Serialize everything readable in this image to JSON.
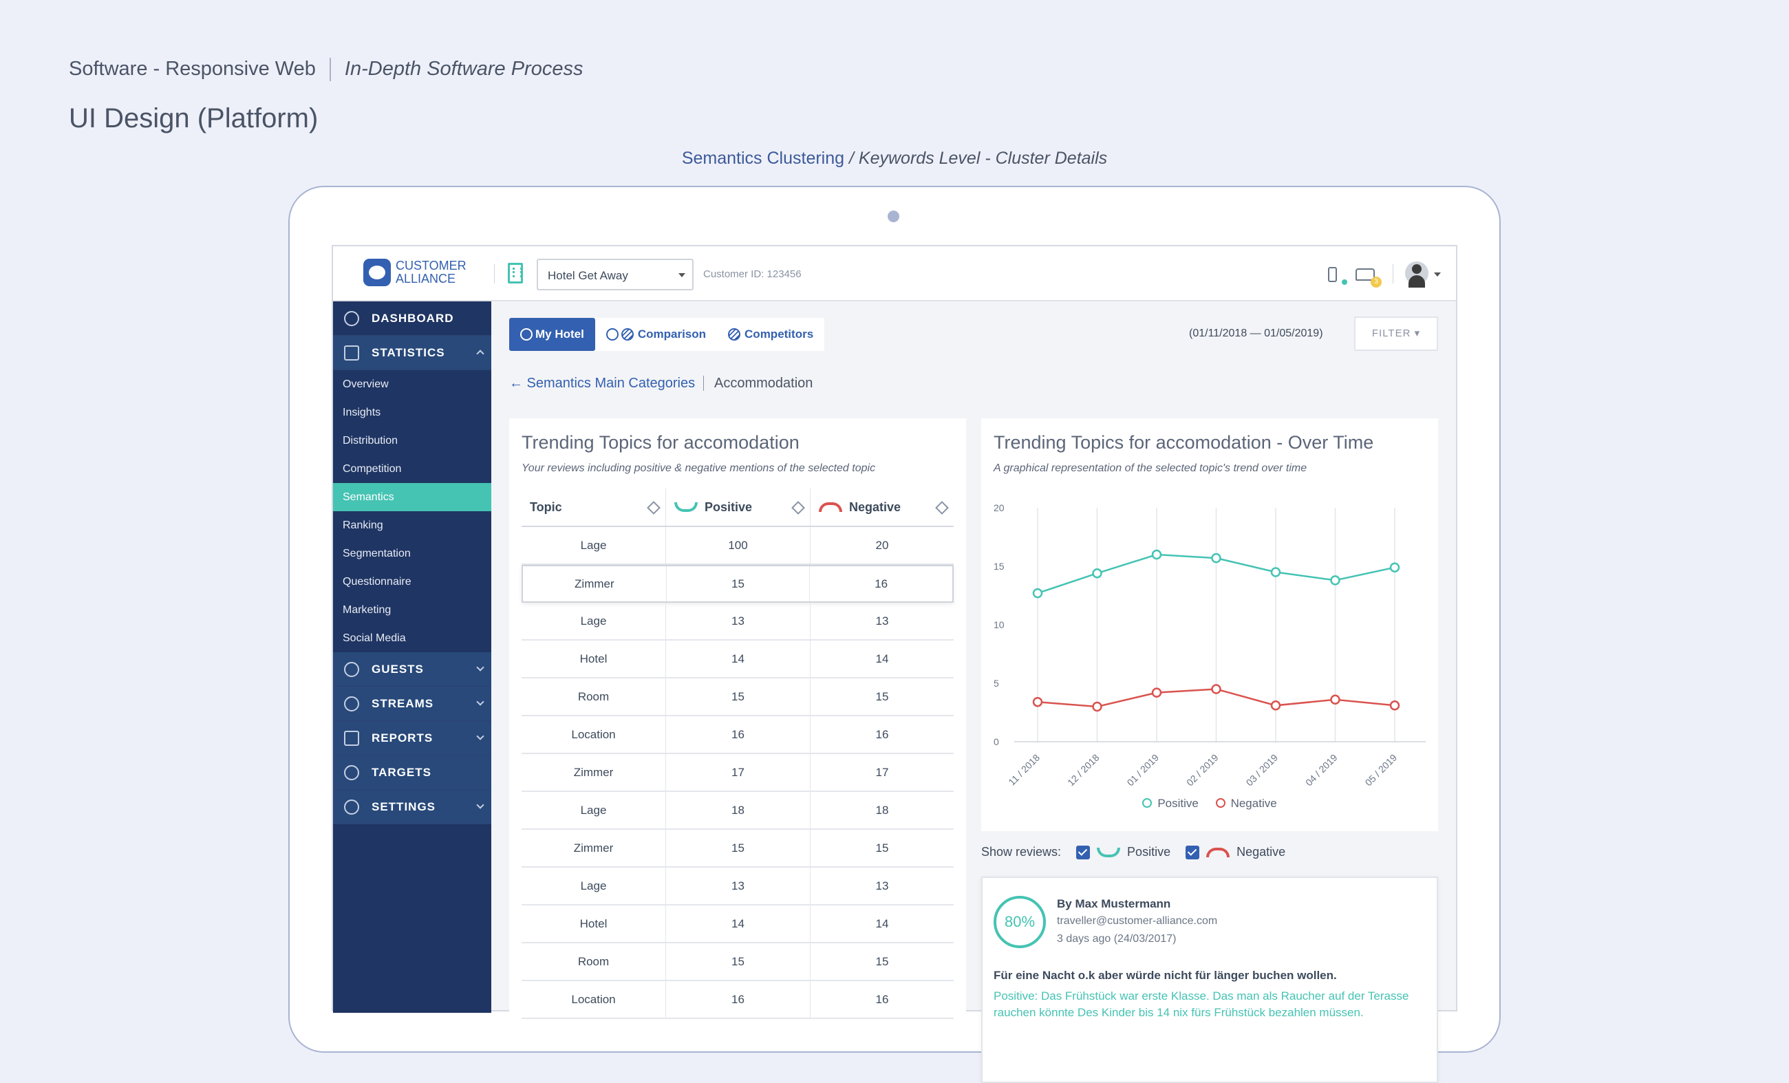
{
  "page": {
    "section": "Software - Responsive Web",
    "subsection": "In-Depth Software Process",
    "heading": "UI Design (Platform)",
    "crumb_main": "Semantics Clustering",
    "crumb_sep": "/",
    "crumb_detail": "Keywords Level - Cluster Details"
  },
  "brand": {
    "line1": "CUSTOMER",
    "line2": "ALLIANCE",
    "color": "#3360b0"
  },
  "topbar": {
    "hotel": "Hotel Get Away",
    "customer_id": "Customer ID: 123456",
    "badge": "3"
  },
  "nav": {
    "dashboard": "DASHBOARD",
    "statistics": "STATISTICS",
    "items": [
      "Overview",
      "Insights",
      "Distribution",
      "Competition",
      "Semantics",
      "Ranking",
      "Segmentation",
      "Questionnaire",
      "Marketing",
      "Social Media"
    ],
    "guests": "GUESTS",
    "streams": "STREAMS",
    "reports": "REPORTS",
    "targets": "TARGETS",
    "settings": "SETTINGS"
  },
  "tabs": {
    "my_hotel": "My Hotel",
    "comparison": "Comparison",
    "competitors": "Competitors"
  },
  "date_range": "(01/11/2018 — 01/05/2019)",
  "filter": "FILTER ▾",
  "breadcrumb": {
    "back": "← Semantics Main Categories",
    "current": "Accommodation"
  },
  "topics_panel": {
    "title": "Trending Topics for accomodation",
    "subtitle": "Your reviews including positive & negative mentions of the selected topic",
    "columns": [
      "Topic",
      "Positive",
      "Negative"
    ],
    "rows": [
      [
        "Lage",
        "100",
        "20"
      ],
      [
        "Zimmer",
        "15",
        "16"
      ],
      [
        "Lage",
        "13",
        "13"
      ],
      [
        "Hotel",
        "14",
        "14"
      ],
      [
        "Room",
        "15",
        "15"
      ],
      [
        "Location",
        "16",
        "16"
      ],
      [
        "Zimmer",
        "17",
        "17"
      ],
      [
        "Lage",
        "18",
        "18"
      ],
      [
        "Zimmer",
        "15",
        "15"
      ],
      [
        "Lage",
        "13",
        "13"
      ],
      [
        "Hotel",
        "14",
        "14"
      ],
      [
        "Room",
        "15",
        "15"
      ],
      [
        "Location",
        "16",
        "16"
      ]
    ]
  },
  "trend_panel": {
    "title": "Trending Topics for accomodation - Over Time",
    "subtitle": "A graphical representation of the selected topic's trend over time"
  },
  "chart_data": {
    "type": "line",
    "x": [
      "11 / 2018",
      "12 / 2018",
      "01 / 2019",
      "02 / 2019",
      "03 / 2019",
      "04 / 2019",
      "05 / 2019"
    ],
    "series": [
      {
        "name": "Positive",
        "color": "#45c3b3",
        "values": [
          12.7,
          14.4,
          16.0,
          15.7,
          14.5,
          13.8,
          14.9
        ]
      },
      {
        "name": "Negative",
        "color": "#d9534f",
        "values": [
          3.4,
          3.0,
          4.2,
          4.5,
          3.1,
          3.6,
          3.1
        ]
      }
    ],
    "yticks": [
      0,
      5,
      10,
      15,
      20
    ],
    "ylim": [
      0,
      20
    ],
    "grid": true,
    "legend": "bottom"
  },
  "show_reviews": {
    "label": "Show reviews:",
    "positive": "Positive",
    "negative": "Negative"
  },
  "review": {
    "score": "80%",
    "by": "By Max Mustermann",
    "email": "traveller@customer-alliance.com",
    "date": "3 days ago (24/03/2017)",
    "text": "Für eine Nacht o.k aber würde nicht für länger buchen wollen.",
    "positive": "Positive: Das Frühstück war erste Klasse. Das man als Raucher auf der Terasse rauchen könnte Des Kinder bis 14 nix fürs Frühstück bezahlen müssen."
  }
}
